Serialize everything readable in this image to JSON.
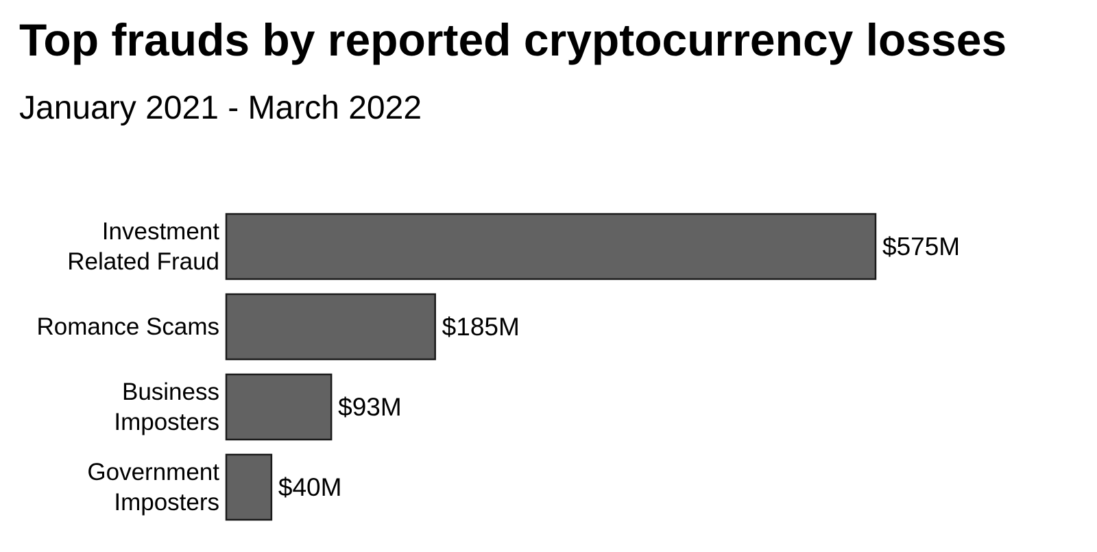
{
  "chart_data": {
    "type": "bar",
    "orientation": "horizontal",
    "title": "Top frauds by reported cryptocurrency losses",
    "subtitle": "January 2021 - March 2022",
    "xlabel": "",
    "ylabel": "",
    "unit": "million USD",
    "xlim": [
      0,
      575
    ],
    "grid": false,
    "legend": "none",
    "bar_color": "#626262",
    "bar_edge_color": "#1a1a1a",
    "categories": [
      [
        "Investment",
        "Related Fraud"
      ],
      [
        "Romance Scams"
      ],
      [
        "Business",
        "Imposters"
      ],
      [
        "Government",
        "Imposters"
      ]
    ],
    "values": [
      575,
      185,
      93,
      40
    ],
    "value_labels": [
      "$575M",
      "$185M",
      "$93M",
      "$40M"
    ]
  }
}
